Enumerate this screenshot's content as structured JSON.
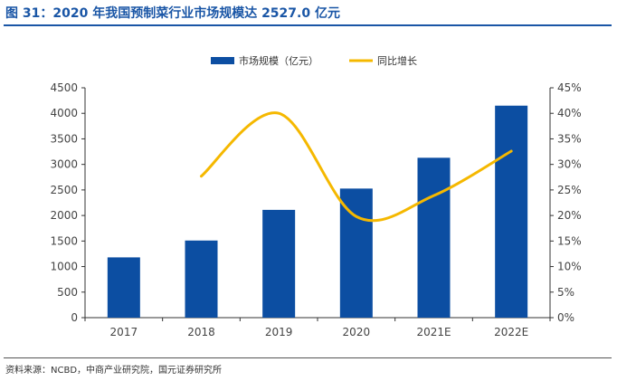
{
  "figure": {
    "title": "图 31：2020 年我国预制菜行业市场规模达 2527.0 亿元",
    "source": "资料来源：NCBD，中商产业研究院，国元证券研究所"
  },
  "chart_data": {
    "type": "bar",
    "categories": [
      "2017",
      "2018",
      "2019",
      "2020",
      "2021E",
      "2022E"
    ],
    "series": [
      {
        "name": "市场规模（亿元）",
        "type": "bar",
        "axis": "left",
        "color": "#0c4ea2",
        "values": [
          1180,
          1510,
          2110,
          2527,
          3130,
          4150
        ]
      },
      {
        "name": "同比增长",
        "type": "line",
        "axis": "right",
        "color": "#f5b800",
        "values": [
          null,
          0.277,
          0.4,
          0.198,
          0.239,
          0.326
        ]
      }
    ],
    "y_left": {
      "min": 0,
      "max": 4500,
      "ticks": [
        "0",
        "500",
        "1000",
        "1500",
        "2000",
        "2500",
        "3000",
        "3500",
        "4000",
        "4500"
      ]
    },
    "y_right": {
      "min": 0,
      "max": 0.45,
      "ticks": [
        "0%",
        "5%",
        "10%",
        "15%",
        "20%",
        "25%",
        "30%",
        "35%",
        "40%",
        "45%"
      ]
    },
    "grid": false,
    "legend_position": "top-center"
  }
}
